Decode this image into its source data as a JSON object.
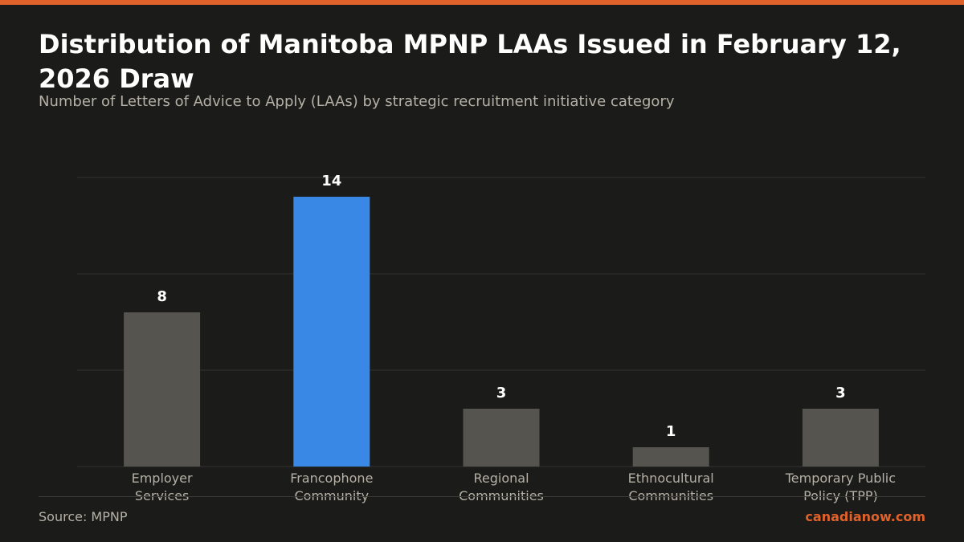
{
  "header": {
    "title": "Distribution of Manitoba MPNP LAAs Issued in February 12, 2026 Draw",
    "subtitle": "Number of Letters of Advice to Apply (LAAs) by strategic recruitment initiative category"
  },
  "footer": {
    "source": "Source: MPNP",
    "brand": "canadianow.com"
  },
  "colors": {
    "background": "#1b1b19",
    "accent": "#e0622b",
    "highlight_bar": "#3a88e5",
    "default_bar": "#55544f",
    "gridline": "#333331",
    "tick_label": "#b5b1a6",
    "value_label": "#ffffff"
  },
  "chart_data": {
    "type": "bar",
    "categories": [
      [
        "Employer",
        "Services"
      ],
      [
        "Francophone",
        "Community"
      ],
      [
        "Regional",
        "Communities"
      ],
      [
        "Ethnocultural",
        "Communities"
      ],
      [
        "Temporary Public",
        "Policy (TPP)"
      ]
    ],
    "values": [
      8,
      14,
      3,
      1,
      3
    ],
    "highlight_index": 1,
    "ylim": [
      0,
      15
    ],
    "gridlines": [
      0,
      5,
      10,
      15
    ],
    "grid": true,
    "xlabel": "",
    "ylabel": ""
  }
}
